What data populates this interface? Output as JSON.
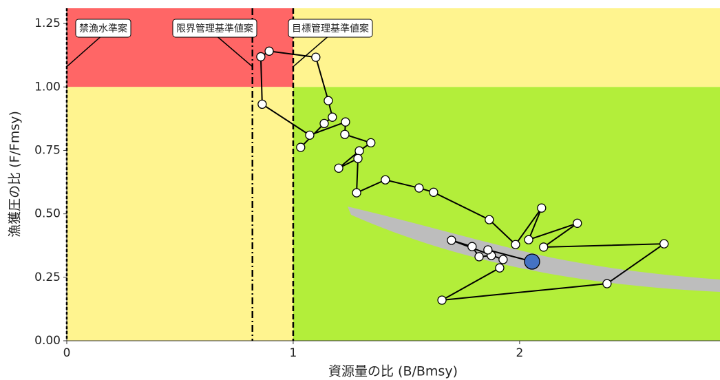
{
  "chart_data": {
    "type": "kobe",
    "x_label": "資源量の比 (B/Bmsy)",
    "y_label": "漁獲圧の比 (F/Fmsy)",
    "xlim": [
      0,
      2.885
    ],
    "ylim": [
      0,
      1.31
    ],
    "xticks": [
      0,
      1,
      2
    ],
    "yticks": [
      {
        "value": 0,
        "label": "0.00"
      },
      0.25,
      {
        "value": 0.5,
        "label": "0.50"
      },
      0.75,
      {
        "value": 1,
        "label": "1.00"
      },
      1.25
    ],
    "zones": [
      {
        "x": [
          0,
          1
        ],
        "y": [
          1,
          1.31
        ],
        "color": "#ff6666"
      },
      {
        "x": [
          0,
          1
        ],
        "y": [
          0,
          1
        ],
        "color": "#fff48f"
      },
      {
        "x": [
          1,
          2.885
        ],
        "y": [
          1,
          1.31
        ],
        "color": "#fff48f"
      },
      {
        "x": [
          1,
          2.885
        ],
        "y": [
          0,
          1
        ],
        "color": "#b3ee3a"
      }
    ],
    "reference_lines": [
      {
        "x": 0,
        "label": "禁漁水準案",
        "dash": "4,3"
      },
      {
        "x": 0.82,
        "label": "限界管理基準値案",
        "dash": "10,4,2,4"
      },
      {
        "x": 1,
        "label": "目標管理基準値案",
        "dash": "8,4"
      }
    ],
    "line_color": "#000000",
    "point_color": "#ffffff",
    "last_point_color": "#4472c4",
    "x": [
      1.033,
      1.137,
      1.173,
      1.155,
      1.1,
      0.894,
      0.857,
      0.863,
      1.073,
      1.231,
      1.228,
      1.343,
      1.292,
      1.201,
      1.286,
      1.28,
      1.407,
      1.556,
      1.62,
      1.866,
      1.982,
      2.097,
      2.04,
      2.255,
      2.106,
      2.638,
      2.386,
      1.657,
      1.912,
      1.927,
      1.699,
      1.79,
      1.821,
      1.875,
      1.86,
      2.055
    ],
    "values": [
      0.762,
      0.856,
      0.881,
      0.946,
      1.117,
      1.141,
      1.119,
      0.932,
      0.81,
      0.862,
      0.813,
      0.78,
      0.748,
      0.68,
      0.718,
      0.583,
      0.634,
      0.602,
      0.585,
      0.477,
      0.379,
      0.523,
      0.398,
      0.463,
      0.369,
      0.382,
      0.225,
      0.16,
      0.287,
      0.32,
      0.396,
      0.371,
      0.331,
      0.336,
      0.358,
      0.312
    ]
  }
}
